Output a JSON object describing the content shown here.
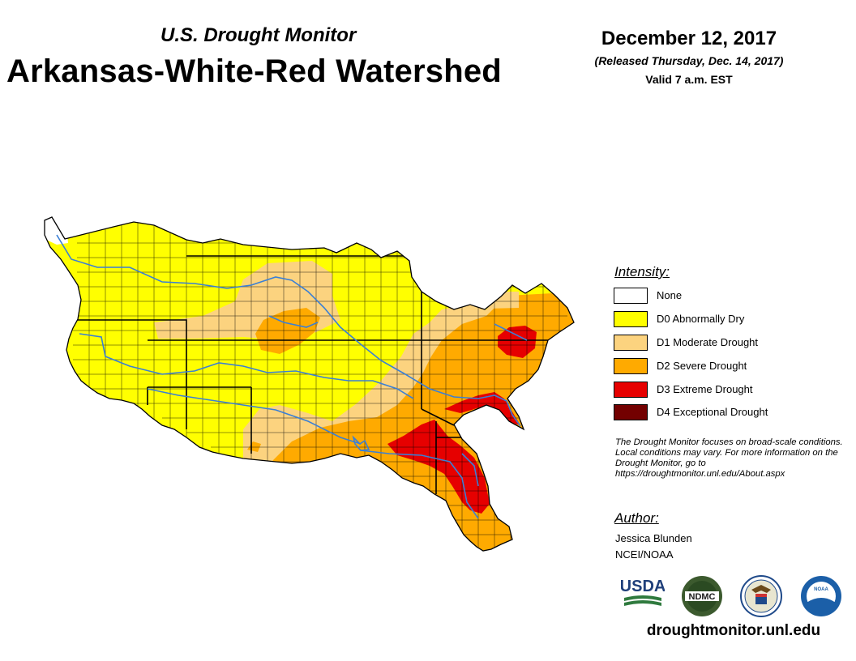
{
  "header": {
    "subtitle": "U.S. Drought Monitor",
    "title": "Arkansas-White-Red Watershed",
    "date": "December 12, 2017",
    "released": "(Released Thursday, Dec. 14, 2017)",
    "valid": "Valid 7 a.m. EST"
  },
  "legend": {
    "heading": "Intensity:",
    "items": [
      {
        "label": "None",
        "color": "#ffffff"
      },
      {
        "label": "D0 Abnormally Dry",
        "color": "#ffff00"
      },
      {
        "label": "D1 Moderate Drought",
        "color": "#fcd37f"
      },
      {
        "label": "D2 Severe Drought",
        "color": "#ffaa00"
      },
      {
        "label": "D3 Extreme Drought",
        "color": "#e60000"
      },
      {
        "label": "D4 Exceptional Drought",
        "color": "#730000"
      }
    ]
  },
  "note": "The Drought Monitor focuses on broad-scale conditions. Local conditions may vary. For more information on the Drought Monitor, go to https://droughtmonitor.unl.edu/About.aspx",
  "author": {
    "heading": "Author:",
    "name": "Jessica Blunden",
    "org": "NCEI/NOAA"
  },
  "logos": {
    "usda": "USDA",
    "ndmc": "NDMC",
    "noaa": "NOAA"
  },
  "footer_url": "droughtmonitor.unl.edu",
  "colors": {
    "river": "#3a7fd5",
    "boundary": "#000000"
  }
}
